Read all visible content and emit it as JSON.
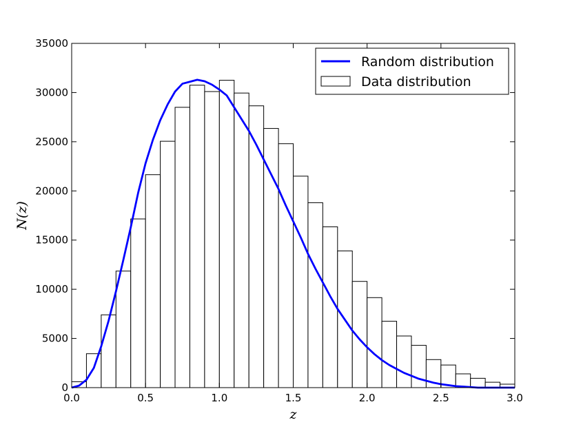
{
  "chart_data": {
    "type": "bar",
    "title": "",
    "xlabel": "z",
    "ylabel": "N(z)",
    "xlim": [
      0.0,
      3.0
    ],
    "ylim": [
      0,
      35000
    ],
    "xticks": [
      "0.0",
      "0.5",
      "1.0",
      "1.5",
      "2.0",
      "2.5",
      "3.0"
    ],
    "yticks": [
      "0",
      "5000",
      "10000",
      "15000",
      "20000",
      "25000",
      "30000",
      "35000"
    ],
    "grid": false,
    "legend_position": "top-right",
    "bins": {
      "name": "Data distribution",
      "edges": [
        0.0,
        0.1,
        0.2,
        0.3,
        0.4,
        0.5,
        0.6,
        0.7,
        0.8,
        0.9,
        1.0,
        1.1,
        1.2,
        1.3,
        1.4,
        1.5,
        1.6,
        1.7,
        1.8,
        1.9,
        2.0,
        2.1,
        2.2,
        2.3,
        2.4,
        2.5,
        2.6,
        2.7,
        2.8,
        2.9,
        3.0
      ],
      "values": [
        600,
        3450,
        7400,
        11850,
        17150,
        21650,
        25050,
        28500,
        30750,
        30100,
        31250,
        29950,
        28650,
        26350,
        24800,
        21500,
        18800,
        16350,
        13900,
        10800,
        9150,
        6750,
        5250,
        4300,
        2850,
        2300,
        1400,
        950,
        550,
        350
      ],
      "fill": "#ffffff",
      "edge_color": "#000000"
    },
    "line": {
      "name": "Random distribution",
      "color": "#0000ff",
      "x": [
        0.0,
        0.05,
        0.1,
        0.15,
        0.2,
        0.25,
        0.3,
        0.35,
        0.4,
        0.45,
        0.5,
        0.55,
        0.6,
        0.65,
        0.7,
        0.75,
        0.8,
        0.85,
        0.9,
        0.95,
        1.0,
        1.05,
        1.1,
        1.15,
        1.2,
        1.25,
        1.3,
        1.35,
        1.4,
        1.45,
        1.5,
        1.55,
        1.6,
        1.65,
        1.7,
        1.75,
        1.8,
        1.85,
        1.9,
        1.95,
        2.0,
        2.05,
        2.1,
        2.15,
        2.2,
        2.25,
        2.3,
        2.35,
        2.4,
        2.45,
        2.5,
        2.55,
        2.6,
        2.65,
        2.7,
        2.75,
        2.8,
        2.85,
        2.9,
        2.95,
        3.0
      ],
      "y": [
        0,
        200,
        800,
        2000,
        4200,
        6800,
        9800,
        13000,
        16300,
        19800,
        22800,
        25200,
        27200,
        28800,
        30100,
        30900,
        31100,
        31300,
        31150,
        30800,
        30300,
        29700,
        28500,
        27300,
        26100,
        24700,
        23200,
        21700,
        20200,
        18500,
        16900,
        15300,
        13600,
        12100,
        10700,
        9300,
        8000,
        6900,
        5800,
        4900,
        4100,
        3400,
        2800,
        2300,
        1900,
        1500,
        1200,
        900,
        700,
        500,
        350,
        250,
        150,
        100,
        50,
        0,
        0,
        0,
        0,
        0,
        0
      ]
    }
  }
}
